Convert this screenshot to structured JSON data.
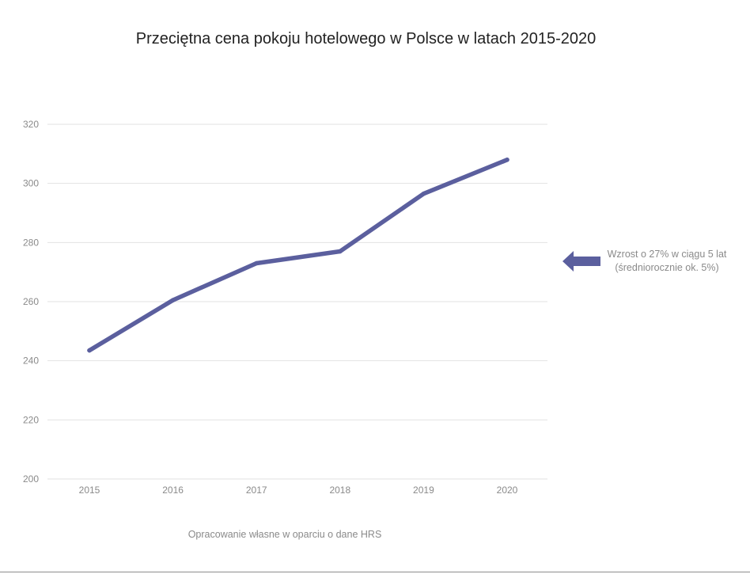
{
  "chart_data": {
    "type": "line",
    "title": "Przeciętna cena pokoju hotelowego w Polsce w latach 2015-2020",
    "xlabel": "",
    "ylabel": "",
    "categories": [
      "2015",
      "2016",
      "2017",
      "2018",
      "2019",
      "2020"
    ],
    "series": [
      {
        "values": [
          243.5,
          260.5,
          273,
          277,
          296.5,
          308
        ]
      }
    ],
    "ylim": [
      200,
      320
    ],
    "yticks": [
      200,
      220,
      240,
      260,
      280,
      300,
      320
    ],
    "grid": true,
    "annotation": "Wzrost o 27% w ciągu 5 lat (średniorocznie ok. 5%)",
    "source": "Opracowanie własne w oparciu o dane HRS"
  },
  "colors": {
    "line": "#5b5f9e",
    "arrow": "#5b5f9e",
    "grid": "#e2e2e2",
    "tick_label": "#8a8a8a",
    "title": "#222222"
  }
}
